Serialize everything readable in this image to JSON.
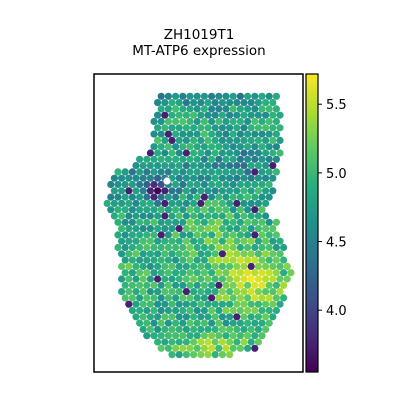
{
  "chart_data": {
    "type": "scatter",
    "subtype": "spatial-spot-map",
    "title": "ZH1019T1",
    "subtitle": "MT-ATP6 expression",
    "xlabel": "",
    "ylabel": "",
    "axes_ticks": false,
    "grid": false,
    "legend": "none",
    "colorbar": {
      "colormap": "viridis",
      "range": [
        3.55,
        5.72
      ],
      "ticks": [
        4.0,
        4.5,
        5.0,
        5.5
      ],
      "tick_labels": [
        "4.0",
        "4.5",
        "5.0",
        "5.5"
      ],
      "placement": "right"
    },
    "value_regions": [
      {
        "region": "tissue-body",
        "typical_value": 4.85
      },
      {
        "region": "top-band",
        "typical_value": 4.6
      },
      {
        "region": "left-dark-cluster",
        "typical_value": 3.7
      },
      {
        "region": "lower-right-bright",
        "typical_value": 5.45
      },
      {
        "region": "bottom-tip",
        "typical_value": 5.35
      }
    ],
    "colors": {
      "viridis": [
        "#440154",
        "#472d7b",
        "#3b528b",
        "#2c728e",
        "#21918c",
        "#28ae80",
        "#5ec962",
        "#addc30",
        "#fde725"
      ]
    }
  }
}
